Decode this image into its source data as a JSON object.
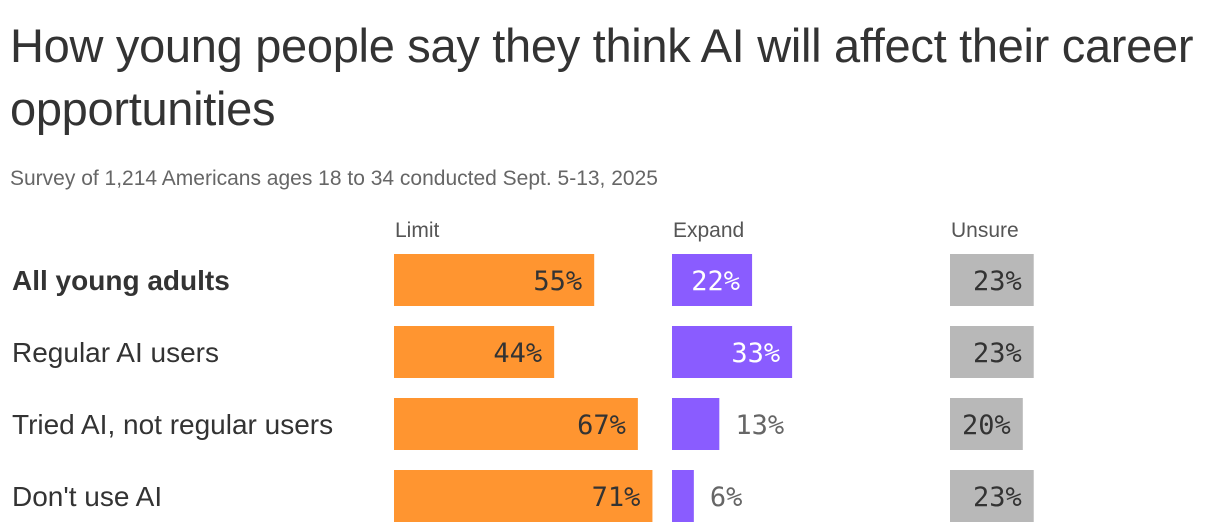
{
  "title": "How young people say they think AI will affect their career opportunities",
  "subtitle": "Survey of 1,214 Americans ages 18 to 34 conducted Sept. 5-13, 2025",
  "colors": {
    "limit": "#FF9530",
    "expand": "#8A5CFF",
    "unsure": "#B8B8B8",
    "label_dark": "#333333",
    "label_muted": "#666666",
    "label_light": "#FFFFFF"
  },
  "chart_data": {
    "type": "bar",
    "orientation": "horizontal",
    "layout": "small-multiples",
    "categories": [
      "All young adults",
      "Regular AI users",
      "Tried AI, not regular users",
      "Don't use AI"
    ],
    "emphasized_category": "All young adults",
    "series": [
      {
        "name": "Limit",
        "values": [
          55,
          44,
          67,
          71
        ],
        "labels": [
          "55%",
          "44%",
          "67%",
          "71%"
        ]
      },
      {
        "name": "Expand",
        "values": [
          22,
          33,
          13,
          6
        ],
        "labels": [
          "22%",
          "33%",
          "13%",
          "6%"
        ]
      },
      {
        "name": "Unsure",
        "values": [
          23,
          23,
          20,
          23
        ],
        "labels": [
          "23%",
          "23%",
          "20%",
          "23%"
        ]
      }
    ],
    "unit": "%",
    "xlim": [
      0,
      100
    ],
    "grid": false,
    "legend": "column headers above each panel"
  }
}
